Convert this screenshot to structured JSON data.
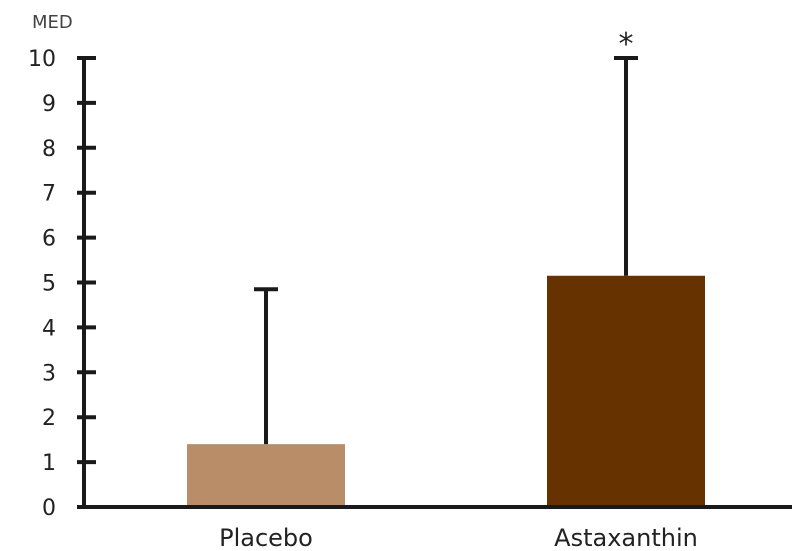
{
  "chart_data": {
    "type": "bar",
    "title": "",
    "ylabel": "MED",
    "xlabel": "",
    "ylim": [
      0,
      10
    ],
    "yticks": [
      0,
      1,
      2,
      3,
      4,
      5,
      6,
      7,
      8,
      9,
      10
    ],
    "categories": [
      "Placebo",
      "Astaxanthin"
    ],
    "values": [
      1.4,
      5.15
    ],
    "error_upper": [
      4.85,
      10
    ],
    "bar_colors": [
      "#b98d68",
      "#663300"
    ],
    "annotations": [
      {
        "category": "Astaxanthin",
        "text": "*"
      }
    ],
    "grid": false
  }
}
